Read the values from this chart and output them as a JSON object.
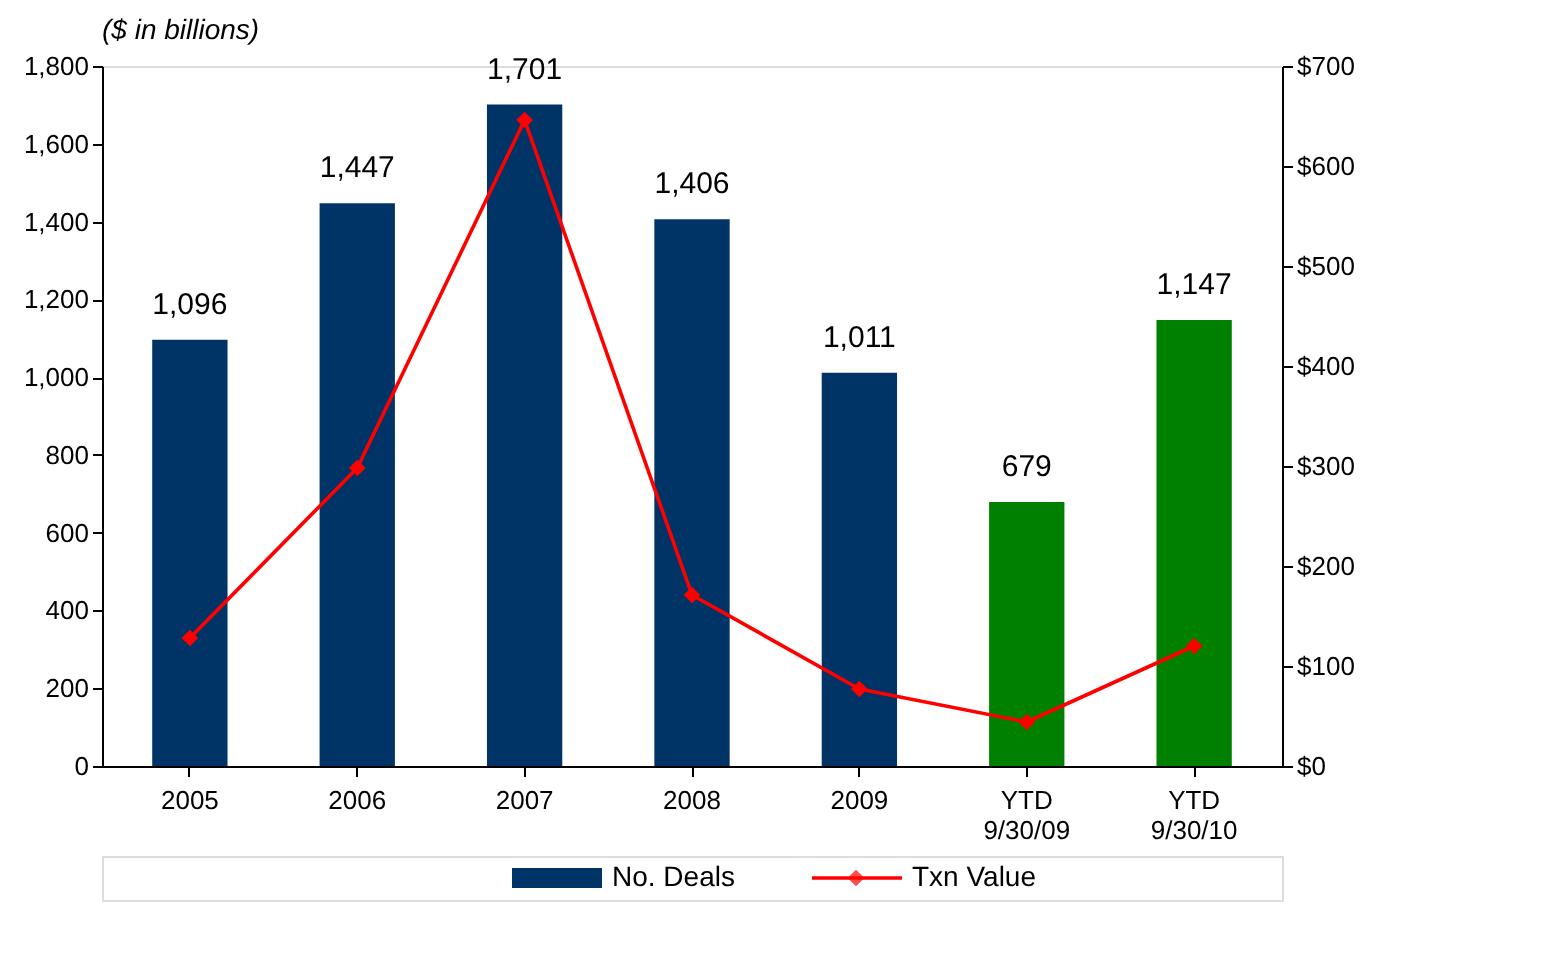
{
  "chart_data": {
    "type": "bar",
    "title": "($ in billions)",
    "categories": [
      "2005",
      "2006",
      "2007",
      "2008",
      "2009",
      "YTD\n9/30/09",
      "YTD\n9/30/10"
    ],
    "series": [
      {
        "name": "No. Deals",
        "color": "#003366",
        "colors": [
          "#003366",
          "#003366",
          "#003366",
          "#003366",
          "#003366",
          "#008000",
          "#008000"
        ],
        "values": [
          1096,
          1447,
          1701,
          1406,
          1011,
          679,
          1147
        ],
        "value_labels": [
          "1,096",
          "1,447",
          "1,701",
          "1,406",
          "1,011",
          "679",
          "1,147"
        ]
      },
      {
        "name": "Txn Value",
        "type": "line",
        "axis": "y2",
        "color": "#ff0000",
        "marker": "diamond",
        "values": [
          128,
          298,
          646,
          171,
          77,
          44,
          120
        ]
      }
    ],
    "ylim": [
      0,
      1800
    ],
    "yticks": [
      0,
      200,
      400,
      600,
      800,
      {
        "value": 1000,
        "label": "1,000"
      },
      {
        "value": 1200,
        "label": "1,200"
      },
      {
        "value": 1400,
        "label": "1,400"
      },
      {
        "value": 1600,
        "label": "1,600"
      },
      {
        "value": 1800,
        "label": "1,800"
      }
    ],
    "y2lim": [
      0,
      700
    ],
    "y2ticks": [
      {
        "value": 0,
        "label": "$0"
      },
      {
        "value": 100,
        "label": "$100"
      },
      {
        "value": 200,
        "label": "$200"
      },
      {
        "value": 300,
        "label": "$300"
      },
      {
        "value": 400,
        "label": "$400"
      },
      {
        "value": 500,
        "label": "$500"
      },
      {
        "value": 600,
        "label": "$600"
      },
      {
        "value": 700,
        "label": "$700"
      }
    ],
    "grid": false,
    "legend": "bottom"
  }
}
